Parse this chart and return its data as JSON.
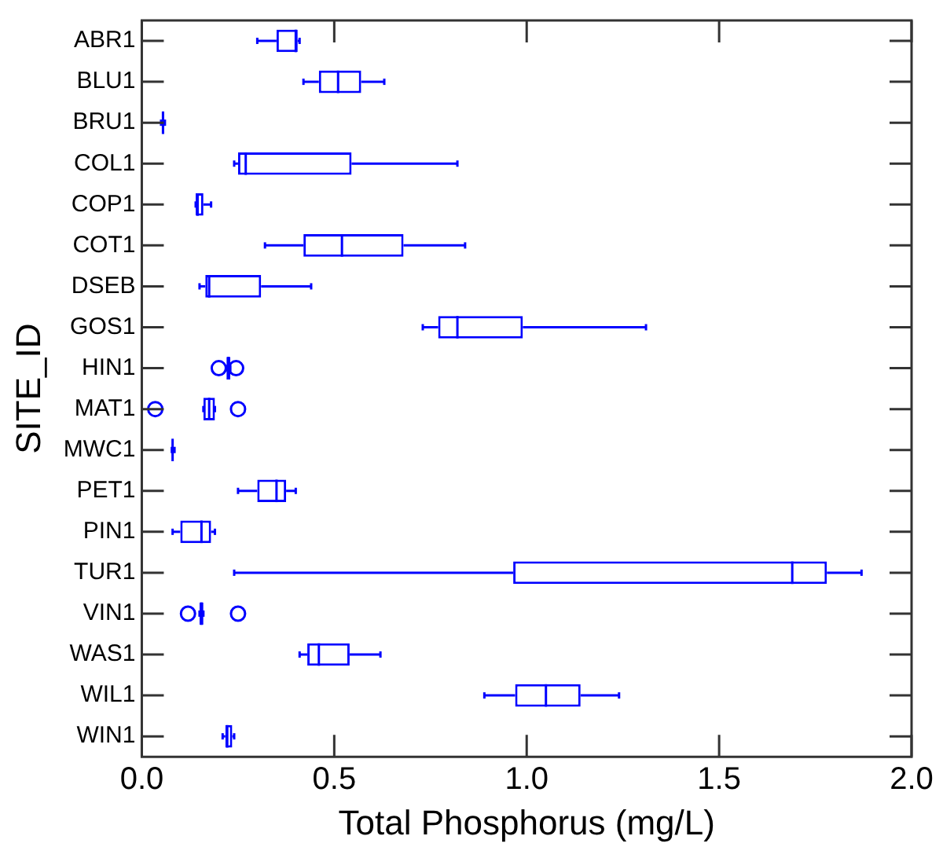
{
  "chart_data": {
    "type": "box",
    "orientation": "horizontal",
    "xlabel": "Total Phosphorus (mg/L)",
    "ylabel": "SITE_ID",
    "categories": [
      "ABR1",
      "BLU1",
      "BRU1",
      "COL1",
      "COP1",
      "COT1",
      "DSEB",
      "GOS1",
      "HIN1",
      "MAT1",
      "MWC1",
      "PET1",
      "PIN1",
      "TUR1",
      "VIN1",
      "WAS1",
      "WIL1",
      "WIN1"
    ],
    "color": "#0000ff",
    "boxes": [
      {
        "low": 0.3,
        "q1": 0.35,
        "median": 0.4,
        "q3": 0.405,
        "high": 0.41
      },
      {
        "low": 0.42,
        "q1": 0.46,
        "median": 0.51,
        "q3": 0.57,
        "high": 0.63
      },
      {
        "low": 0.05,
        "q1": 0.053,
        "median": 0.055,
        "q3": 0.058,
        "high": 0.06
      },
      {
        "low": 0.24,
        "q1": 0.25,
        "median": 0.27,
        "q3": 0.545,
        "high": 0.82
      },
      {
        "low": 0.14,
        "q1": 0.14,
        "median": 0.145,
        "q3": 0.16,
        "high": 0.18
      },
      {
        "low": 0.32,
        "q1": 0.42,
        "median": 0.52,
        "q3": 0.68,
        "high": 0.84
      },
      {
        "low": 0.15,
        "q1": 0.165,
        "median": 0.175,
        "q3": 0.31,
        "high": 0.44
      },
      {
        "low": 0.73,
        "q1": 0.77,
        "median": 0.82,
        "q3": 0.99,
        "high": 1.31
      },
      {
        "low": 0.22,
        "q1": 0.22,
        "median": 0.225,
        "q3": 0.23,
        "high": 0.23,
        "outliers": [
          0.2,
          0.245
        ]
      },
      {
        "low": 0.16,
        "q1": 0.16,
        "median": 0.175,
        "q3": 0.19,
        "high": 0.19,
        "outliers": [
          0.035,
          0.25
        ]
      },
      {
        "low": 0.078,
        "q1": 0.08,
        "median": 0.08,
        "q3": 0.082,
        "high": 0.085
      },
      {
        "low": 0.25,
        "q1": 0.3,
        "median": 0.35,
        "q3": 0.375,
        "high": 0.4
      },
      {
        "low": 0.08,
        "q1": 0.1,
        "median": 0.155,
        "q3": 0.18,
        "high": 0.19
      },
      {
        "low": 0.24,
        "q1": 0.965,
        "median": 1.69,
        "q3": 1.78,
        "high": 1.87
      },
      {
        "low": 0.15,
        "q1": 0.15,
        "median": 0.155,
        "q3": 0.16,
        "high": 0.16,
        "outliers": [
          0.12,
          0.25
        ]
      },
      {
        "low": 0.41,
        "q1": 0.43,
        "median": 0.46,
        "q3": 0.54,
        "high": 0.62
      },
      {
        "low": 0.89,
        "q1": 0.97,
        "median": 1.05,
        "q3": 1.14,
        "high": 1.24
      },
      {
        "low": 0.21,
        "q1": 0.217,
        "median": 0.222,
        "q3": 0.235,
        "high": 0.24
      }
    ],
    "xlim": [
      0,
      2
    ],
    "xticks": [
      {
        "value": 0,
        "label": "0.0"
      },
      {
        "value": 0.5,
        "label": "0.5"
      },
      {
        "value": 1,
        "label": "1.0"
      },
      {
        "value": 1.5,
        "label": "1.5"
      },
      {
        "value": 2,
        "label": "2.0"
      }
    ],
    "grid": false,
    "legend": false
  }
}
